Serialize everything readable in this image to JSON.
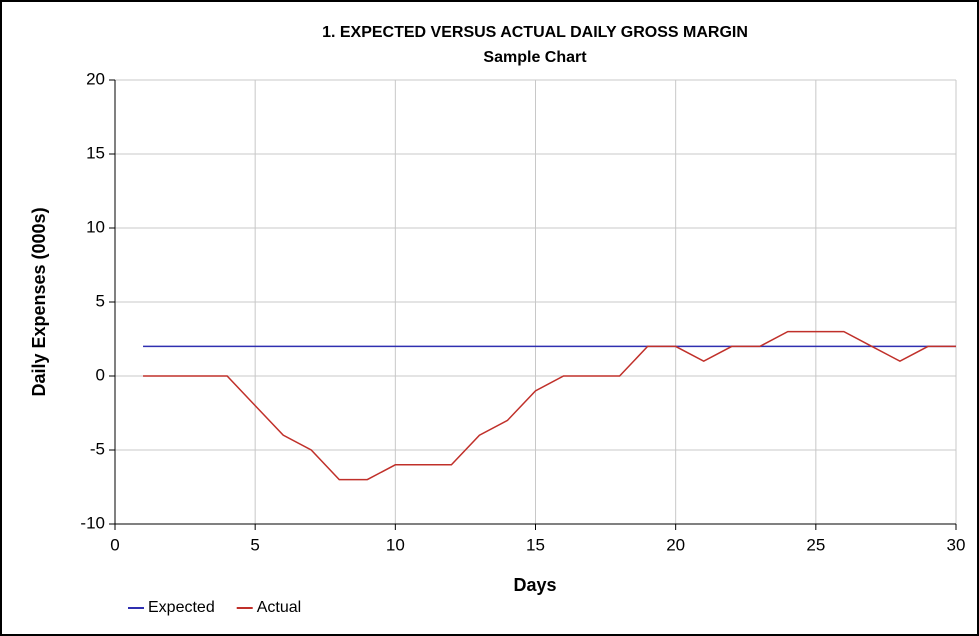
{
  "chart_data": {
    "type": "line",
    "title": "1. EXPECTED VERSUS ACTUAL DAILY GROSS MARGIN",
    "subtitle": "Sample Chart",
    "x_label": "Days",
    "y_label": "Daily Expenses (000s)",
    "x": [
      1,
      2,
      3,
      4,
      5,
      6,
      7,
      8,
      9,
      10,
      11,
      12,
      13,
      14,
      15,
      16,
      17,
      18,
      19,
      20,
      21,
      22,
      23,
      24,
      25,
      26,
      27,
      28,
      29,
      30
    ],
    "series": [
      {
        "name": "Expected",
        "color": "#2f2fb0",
        "values": [
          2,
          2,
          2,
          2,
          2,
          2,
          2,
          2,
          2,
          2,
          2,
          2,
          2,
          2,
          2,
          2,
          2,
          2,
          2,
          2,
          2,
          2,
          2,
          2,
          2,
          2,
          2,
          2,
          2,
          2
        ]
      },
      {
        "name": "Actual",
        "color": "#c0302a",
        "values": [
          0,
          0,
          0,
          0,
          -2,
          -4,
          -5,
          -7,
          -7,
          -6,
          -6,
          -6,
          -4,
          -3,
          -1,
          0,
          0,
          0,
          2,
          2,
          1,
          2,
          2,
          3,
          3,
          3,
          2,
          1,
          2,
          2
        ]
      }
    ],
    "xlim": [
      0,
      30
    ],
    "xticks": [
      0,
      5,
      10,
      15,
      20,
      25,
      30
    ],
    "ylim": [
      -10,
      20
    ],
    "yticks": [
      -10,
      -5,
      0,
      5,
      10,
      15,
      20
    ],
    "grid": true,
    "legend": "bottom-left"
  }
}
